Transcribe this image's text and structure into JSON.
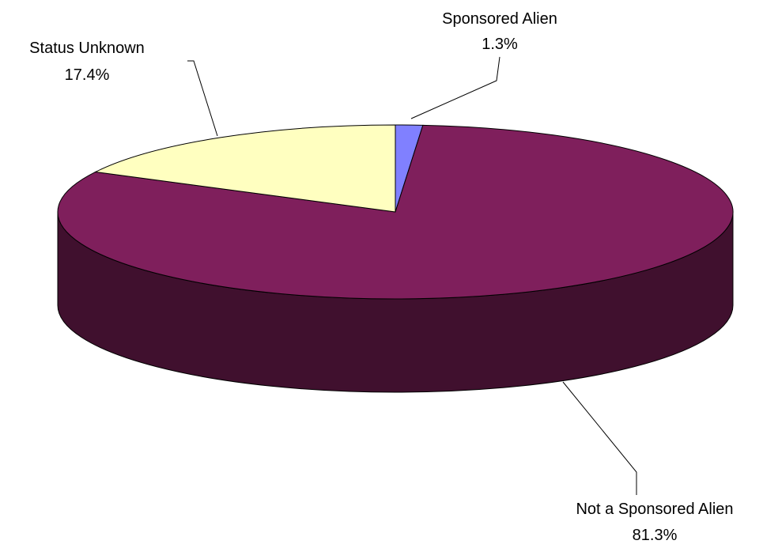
{
  "chart_data": {
    "type": "pie",
    "title": "",
    "legend": "none",
    "slices": [
      {
        "label": "Sponsored Alien",
        "value": 1.3,
        "value_label": "1.3%",
        "color": "#8080ff"
      },
      {
        "label": "Not a Sponsored Alien",
        "value": 81.3,
        "value_label": "81.3%",
        "color": "#7f1f5c"
      },
      {
        "label": "Status Unknown",
        "value": 17.4,
        "value_label": "17.4%",
        "color": "#ffffc0"
      }
    ]
  }
}
